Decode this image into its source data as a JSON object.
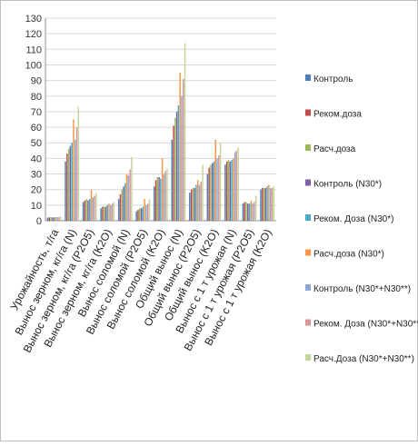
{
  "chart_data": {
    "type": "bar",
    "title": "",
    "xlabel": "",
    "ylabel": "",
    "ylim": [
      0,
      130
    ],
    "yticks": [
      0,
      10,
      20,
      30,
      40,
      50,
      60,
      70,
      80,
      90,
      100,
      110,
      120,
      130
    ],
    "grid": true,
    "legend_position": "right",
    "categories": [
      "Урожайность, т/га",
      "Вынос зерном, кг/га (N)",
      "Вынос зерном, кг/га (P2O5)",
      "Вынос зерном, кг/га (K2O)",
      "Вынос соломой (N)",
      "Вынос соломой (P2O5)",
      "Вынос соломой (K2O)",
      "Общий вынос (N)",
      "Общий вынос (P2O5)",
      "Общий вынос (K2O)",
      "Вынос с 1 т урожая (N)",
      "Вынос с 1 т урожая (P2O5)",
      "Вынос с 1 т урожая (K2O)"
    ],
    "series": [
      {
        "name": "Контроль",
        "color": "#4a7ebb",
        "values": [
          2,
          38,
          12,
          8,
          14,
          6,
          22,
          52,
          18,
          30,
          36,
          11,
          20
        ]
      },
      {
        "name": "Реком.доза",
        "color": "#be4b48",
        "values": [
          2.2,
          43,
          13,
          9,
          17,
          7,
          26,
          61,
          20,
          34,
          38,
          12,
          21
        ]
      },
      {
        "name": "Расч.доза",
        "color": "#98b954",
        "values": [
          2.3,
          46,
          14,
          9,
          20,
          8,
          28,
          66,
          21,
          36,
          39,
          12,
          21
        ]
      },
      {
        "name": "Контроль (N30*)",
        "color": "#7d60a0",
        "values": [
          2.1,
          48,
          13,
          9,
          22,
          8,
          28,
          70,
          21,
          37,
          38,
          11,
          21
        ]
      },
      {
        "name": "Реком. Доза (N30*)",
        "color": "#46aac5",
        "values": [
          2.2,
          50,
          14,
          10,
          24,
          9,
          27,
          74,
          23,
          38,
          39,
          11,
          22
        ]
      },
      {
        "name": "Расч.доза (N30*)",
        "color": "#f79646",
        "values": [
          2.4,
          65,
          20,
          11,
          30,
          14,
          40,
          95,
          26,
          52,
          40,
          13,
          23
        ]
      },
      {
        "name": "Контроль (N30*+N30**)",
        "color": "#8aa8d8",
        "values": [
          2.3,
          52,
          15,
          10,
          29,
          10,
          30,
          80,
          23,
          40,
          44,
          11,
          21
        ]
      },
      {
        "name": "Реком. Доза (N30*+N30**)",
        "color": "#d99594",
        "values": [
          2.4,
          60,
          16,
          11,
          33,
          11,
          32,
          91,
          25,
          42,
          45,
          12,
          21
        ]
      },
      {
        "name": "Расч.Доза (N30*+N30**)",
        "color": "#c3d69b",
        "values": [
          2.6,
          73,
          18,
          12,
          41,
          14,
          33,
          114,
          36,
          50,
          47,
          16,
          22
        ]
      }
    ]
  }
}
